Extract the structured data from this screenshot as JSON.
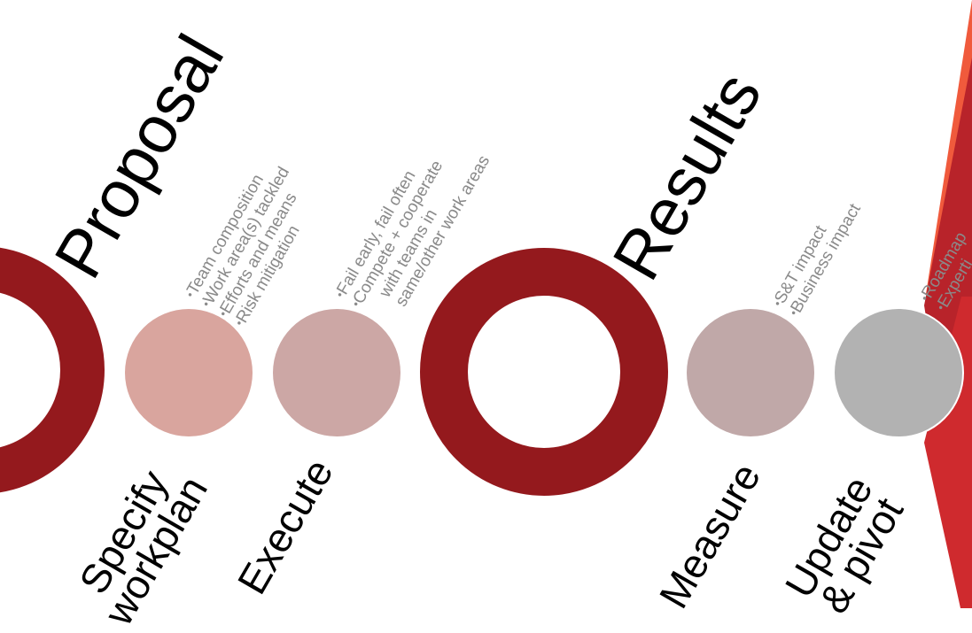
{
  "colors": {
    "ring": "#94191d",
    "specify_fill": "#d9a59e",
    "execute_fill": "#cca7a5",
    "measure_fill": "#c0a8a8",
    "update_fill": "#b2b2b2",
    "accent_dark": "#b8232a",
    "accent_mid": "#cf2a2e",
    "accent_light": "#f05a3c"
  },
  "milestones": {
    "proposal": {
      "label": "Proposal"
    },
    "results": {
      "label": "Results"
    }
  },
  "steps": {
    "specify": {
      "label": "Specify\nworkplan",
      "bullets": [
        "Team composition",
        "Work area(s) tackled",
        "Efforts and means",
        "Risk mitigation"
      ]
    },
    "execute": {
      "label": "Execute",
      "bullets": [
        "Fail early, fail often",
        "Compete + cooperate",
        "with teams in",
        "same/other work areas"
      ]
    },
    "measure": {
      "label": "Measure",
      "bullets": [
        "S&T impact",
        "Business impact"
      ]
    },
    "update": {
      "label": "Update\n& pivot",
      "bullets": [
        "Roadmap",
        "Experti"
      ]
    }
  }
}
